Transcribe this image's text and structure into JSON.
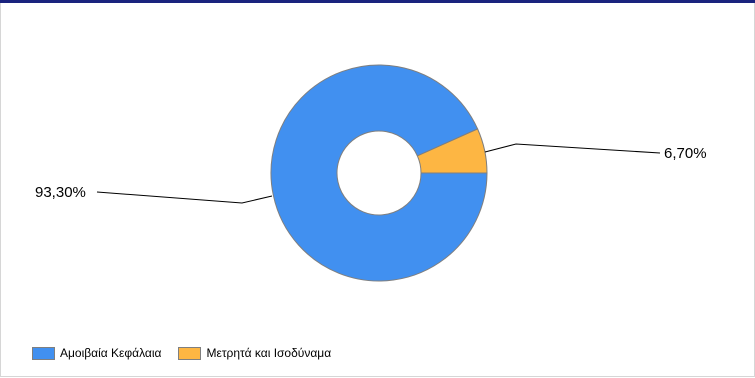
{
  "chart_data": {
    "type": "pie",
    "donut": true,
    "title": "",
    "slices": [
      {
        "label": "Αμοιβαία Κεφάλαια",
        "value": 93.3,
        "display": "93,30%",
        "color": "#4190f0"
      },
      {
        "label": "Μετρητά και Ισοδύναμα",
        "value": 6.7,
        "display": "6,70%",
        "color": "#fdb643"
      }
    ],
    "legend_position": "bottom-left"
  }
}
